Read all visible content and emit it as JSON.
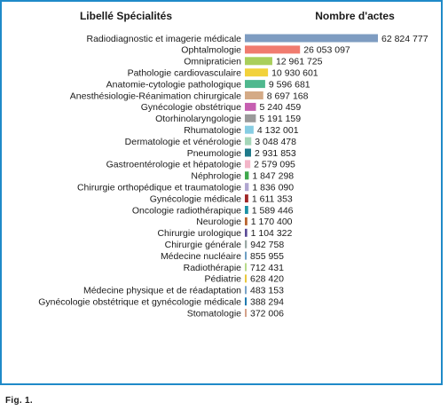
{
  "caption": "Fig. 1.",
  "chart_data": {
    "type": "bar",
    "orientation": "horizontal",
    "header_left": "Libellé Spécialités",
    "header_right": "Nombre d'actes",
    "categories": [
      "Radiodiagnostic et imagerie médicale",
      "Ophtalmologie",
      "Omnipraticien",
      "Pathologie cardiovasculaire",
      "Anatomie-cytologie pathologique",
      "Anesthésiologie-Réanimation chirurgicale",
      "Gynécologie obstétrique",
      "Otorhinolaryngologie",
      "Rhumatologie",
      "Dermatologie et vénérologie",
      "Pneumologie",
      "Gastroentérologie et hépatologie",
      "Néphrologie",
      "Chirurgie orthopédique et traumatologie",
      "Gynécologie médicale",
      "Oncologie radiothérapique",
      "Neurologie",
      "Chirurgie urologique",
      "Chirurgie générale",
      "Médecine nucléaire",
      "Radiothérapie",
      "Pédiatrie",
      "Médecine physique et de réadaptation",
      "Gynécologie obstétrique et gynécologie médicale",
      "Stomatologie"
    ],
    "values": [
      62824777,
      26053097,
      12961725,
      10930601,
      9596681,
      8697168,
      5240459,
      5191159,
      4132001,
      3048478,
      2931853,
      2579095,
      1847298,
      1836090,
      1611353,
      1589446,
      1170400,
      1104322,
      942758,
      855955,
      712431,
      628420,
      483153,
      388294,
      372006
    ],
    "value_labels": [
      "62 824 777",
      "26 053 097",
      "12 961 725",
      "10 930 601",
      "9 596 681",
      "8 697 168",
      "5 240 459",
      "5 191 159",
      "4 132 001",
      "3 048 478",
      "2 931 853",
      "2 579 095",
      "1 847 298",
      "1 836 090",
      "1 611 353",
      "1 589 446",
      "1 170 400",
      "1 104 322",
      "942 758",
      "855 955",
      "712 431",
      "628 420",
      "483 153",
      "388 294",
      "372 006"
    ],
    "colors": [
      "#7e9cc1",
      "#f07b6f",
      "#a9cf5b",
      "#f2d23b",
      "#4fb88e",
      "#d4aa86",
      "#c65fb1",
      "#9a9a9a",
      "#86cde3",
      "#a4d6b8",
      "#1f7a8a",
      "#f3b5c8",
      "#3fa84d",
      "#b0a6d0",
      "#a02727",
      "#1c92a6",
      "#b8632e",
      "#5a4a96",
      "#9aa8a6",
      "#6e9fc4",
      "#b7d98a",
      "#e9c83c",
      "#7aa3c7",
      "#1f7ab0",
      "#d4a18a"
    ],
    "xlim": [
      0,
      62824777
    ],
    "grid": false,
    "legend": "none"
  }
}
